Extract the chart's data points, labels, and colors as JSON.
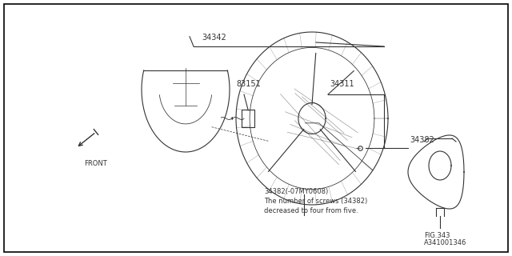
{
  "background_color": "#ffffff",
  "border_color": "#000000",
  "line_color": "#333333",
  "text_color": "#333333",
  "font_size": 7.0,
  "small_font_size": 6.0,
  "note_lines": [
    "34382(-07MY0608)",
    "The number of screws (34382)",
    "decreased to four from five."
  ],
  "figure_id": "A341001346",
  "fig_label": "FIG.343"
}
